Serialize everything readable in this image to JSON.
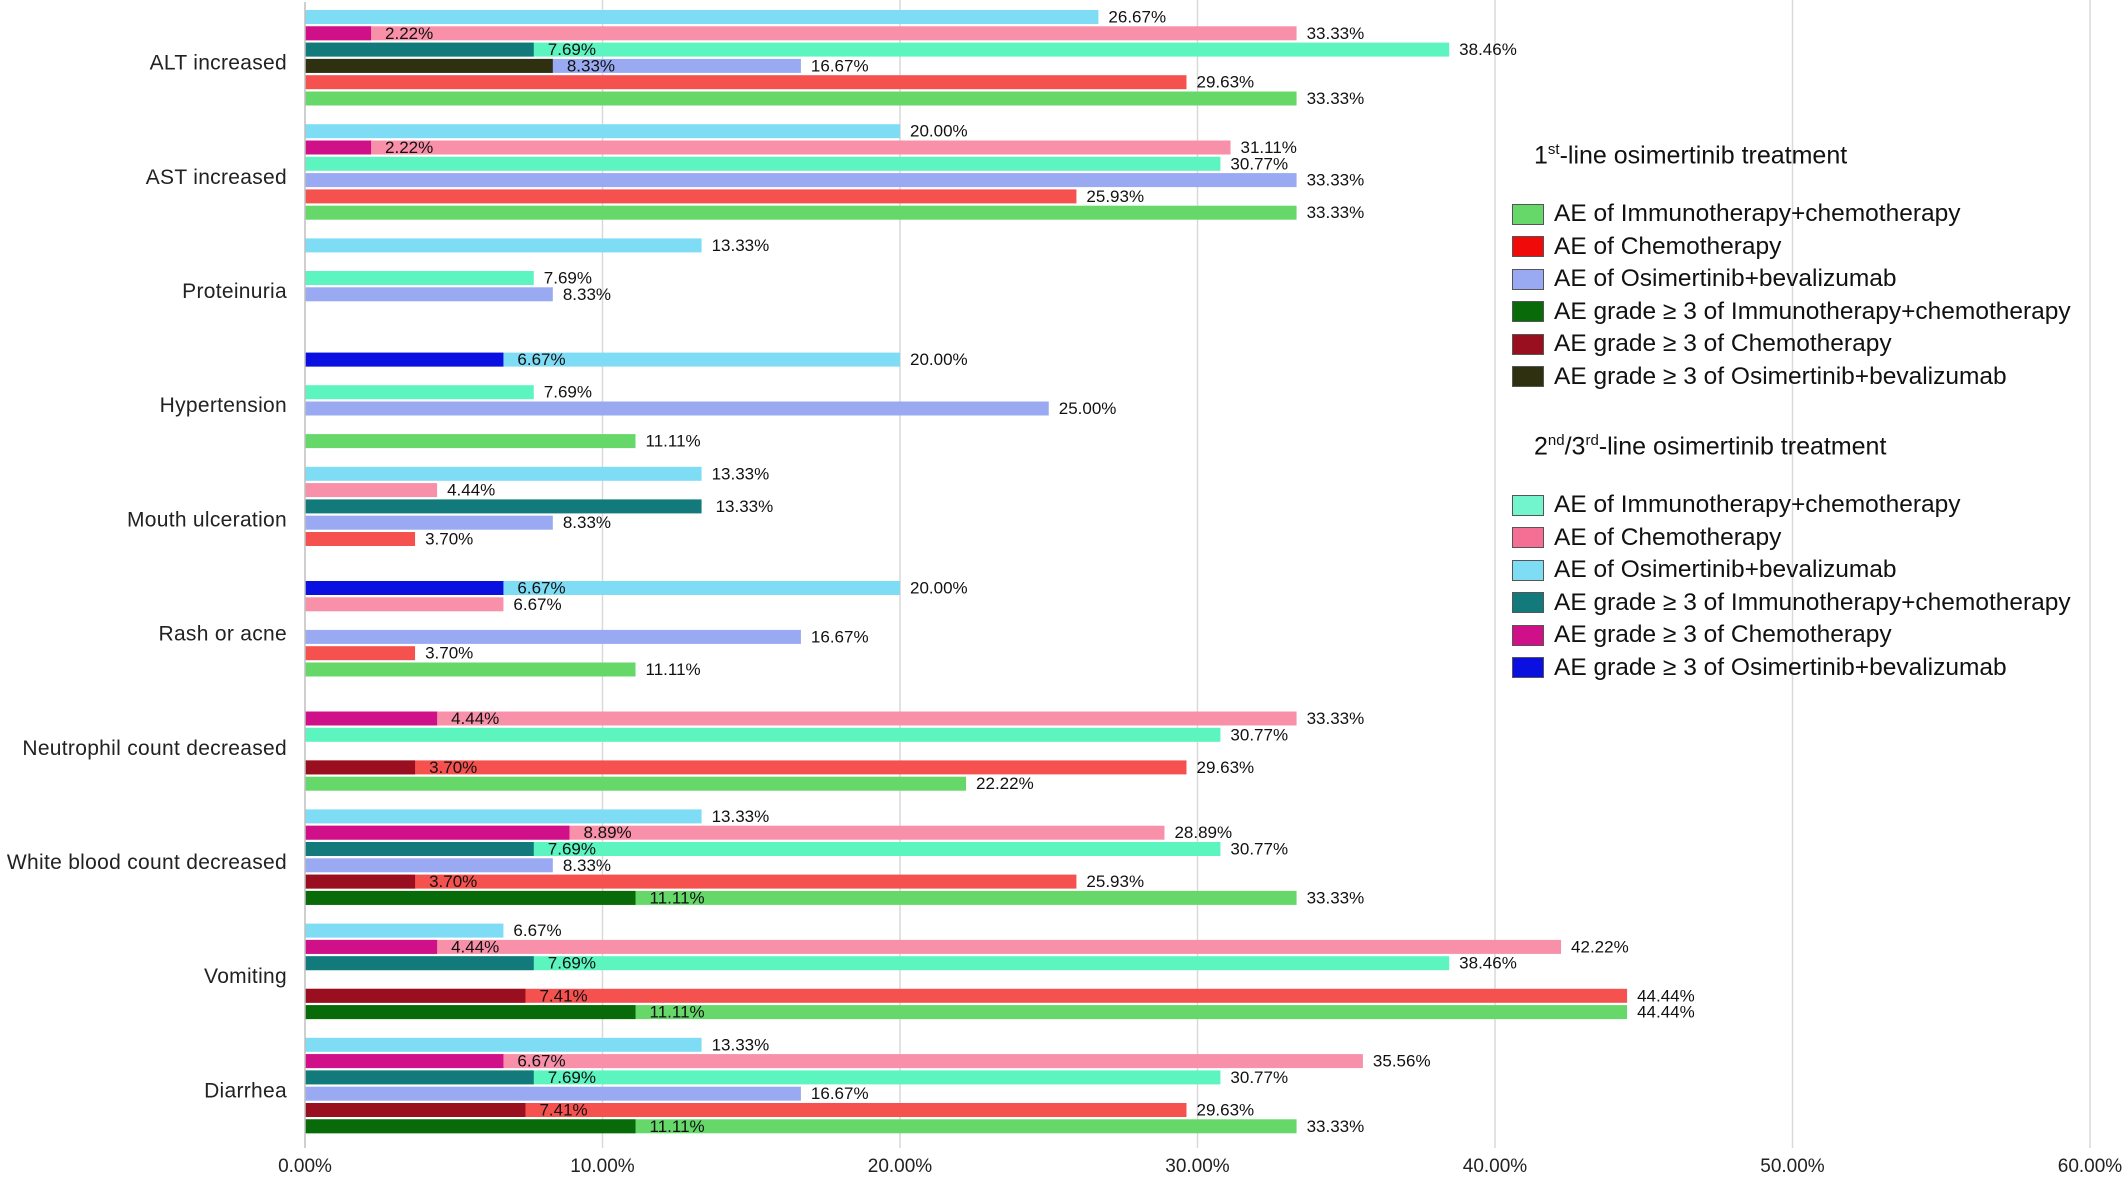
{
  "chart_data": {
    "type": "bar",
    "orientation": "horizontal",
    "grid": true,
    "legend_position": "right",
    "xlim": [
      0,
      60
    ],
    "x_ticks": [
      "0.00%",
      "10.00%",
      "20.00%",
      "30.00%",
      "40.00%",
      "50.00%",
      "60.00%"
    ],
    "categories": [
      "ALT increased",
      "AST increased",
      "Proteinuria",
      "Hypertension",
      "Mouth ulceration",
      "Rash or acne",
      "Neutrophil count decreased",
      "White blood count decreased",
      "Vomiting",
      "Diarrhea"
    ],
    "series": [
      {
        "name": "AE of Osimertinib+bevalizumab",
        "line": "2nd/3rd",
        "color": "#7fdcf5",
        "values": [
          26.67,
          20.0,
          13.33,
          20.0,
          13.33,
          20.0,
          null,
          13.33,
          6.67,
          13.33
        ]
      },
      {
        "name": "AE of Chemotherapy",
        "line": "2nd/3rd",
        "color": "#f790a8",
        "values": [
          33.33,
          31.11,
          null,
          null,
          4.44,
          6.67,
          33.33,
          28.89,
          42.22,
          35.56
        ]
      },
      {
        "name": "AE of Immunotherapy+chemotherapy",
        "line": "2nd/3rd",
        "color": "#5cf5c0",
        "values": [
          38.46,
          30.77,
          7.69,
          7.69,
          null,
          null,
          30.77,
          30.77,
          38.46,
          30.77
        ]
      },
      {
        "name": "AE of Osimertinib+bevalizumab",
        "line": "1st",
        "color": "#99aaf2",
        "values": [
          16.67,
          33.33,
          8.33,
          25.0,
          8.33,
          16.67,
          null,
          8.33,
          null,
          16.67
        ]
      },
      {
        "name": "AE of Chemotherapy",
        "line": "1st",
        "color": "#f5514f",
        "values": [
          29.63,
          25.93,
          null,
          null,
          3.7,
          3.7,
          29.63,
          25.93,
          44.44,
          29.63
        ]
      },
      {
        "name": "AE of Immunotherapy+chemotherapy",
        "line": "1st",
        "color": "#66d86a",
        "values": [
          33.33,
          33.33,
          null,
          11.11,
          null,
          11.11,
          22.22,
          33.33,
          44.44,
          33.33
        ]
      }
    ],
    "grade3_series": [
      {
        "name": "AE grade ≥ 3 of Osimertinib+bevalizumab",
        "line": "2nd/3rd",
        "color": "#0a10e0",
        "row": 0,
        "values": [
          null,
          null,
          null,
          6.67,
          null,
          6.67,
          null,
          null,
          null,
          null
        ]
      },
      {
        "name": "AE grade ≥ 3 of Chemotherapy",
        "line": "2nd/3rd",
        "color": "#d01089",
        "row": 1,
        "values": [
          2.22,
          2.22,
          null,
          null,
          null,
          null,
          4.44,
          8.89,
          4.44,
          6.67
        ]
      },
      {
        "name": "AE grade ≥ 3 of Immunotherapy+chemotherapy",
        "line": "2nd/3rd",
        "color": "#127a7a",
        "row": 2,
        "values": [
          7.69,
          null,
          null,
          null,
          13.33,
          null,
          null,
          7.69,
          7.69,
          7.69
        ]
      },
      {
        "name": "AE grade ≥ 3 of Osimertinib+bevalizumab",
        "line": "1st",
        "color": "#2f3010",
        "row": 3,
        "values": [
          8.33,
          null,
          null,
          null,
          null,
          null,
          null,
          null,
          null,
          null
        ]
      },
      {
        "name": "AE grade ≥ 3 of Chemotherapy",
        "line": "1st",
        "color": "#9a0f20",
        "row": 4,
        "values": [
          null,
          null,
          null,
          null,
          null,
          null,
          3.7,
          3.7,
          7.41,
          7.41
        ]
      },
      {
        "name": "AE grade ≥ 3 of Immunotherapy+chemotherapy",
        "line": "1st",
        "color": "#096a09",
        "row": 5,
        "values": [
          null,
          null,
          null,
          null,
          null,
          null,
          null,
          11.11,
          11.11,
          11.11
        ]
      }
    ]
  },
  "legend": {
    "first_line": {
      "heading_pre": "1",
      "heading_sup": "st",
      "heading_post": "-line osimertinib treatment",
      "items": [
        {
          "label": "AE of Immunotherapy+chemotherapy",
          "color": "#66d86a"
        },
        {
          "label": "AE of Chemotherapy",
          "color": "#f00a0a"
        },
        {
          "label": "AE of Osimertinib+bevalizumab",
          "color": "#99aaf2"
        },
        {
          "label": "AE grade ≥ 3 of Immunotherapy+chemotherapy",
          "color": "#096a09"
        },
        {
          "label": "AE grade ≥ 3 of Chemotherapy",
          "color": "#9a0f20"
        },
        {
          "label": "AE grade ≥ 3 of Osimertinib+bevalizumab",
          "color": "#2f3010"
        }
      ]
    },
    "second_line": {
      "heading_pre": "2",
      "heading_sup": "nd",
      "heading_mid": "/3",
      "heading_sup2": "rd",
      "heading_post": "-line osimertinib treatment",
      "items": [
        {
          "label": "AE of Immunotherapy+chemotherapy",
          "color": "#72f5cc"
        },
        {
          "label": "AE of Chemotherapy",
          "color": "#f56e94"
        },
        {
          "label": "AE of Osimertinib+bevalizumab",
          "color": "#7fdcf5"
        },
        {
          "label": "AE grade ≥ 3 of Immunotherapy+chemotherapy",
          "color": "#127a7a"
        },
        {
          "label": "AE grade ≥ 3 of Chemotherapy",
          "color": "#d01089"
        },
        {
          "label": "AE grade ≥ 3 of Osimertinib+bevalizumab",
          "color": "#0a10e0"
        }
      ]
    }
  }
}
